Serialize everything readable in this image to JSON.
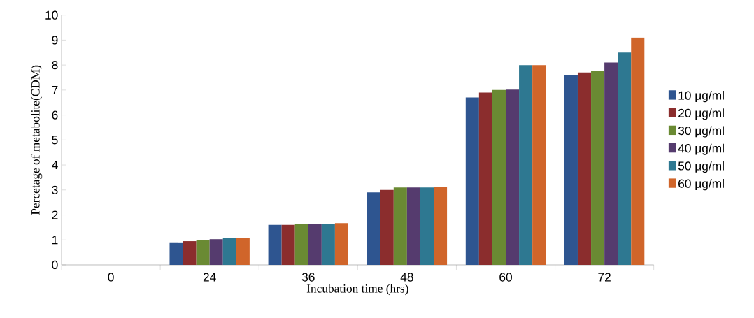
{
  "chart_data": {
    "type": "bar",
    "xlabel": "Incubation time (hrs)",
    "ylabel": "Percetage of metabolite(CDM)",
    "categories": [
      "0",
      "24",
      "36",
      "48",
      "60",
      "72"
    ],
    "series": [
      {
        "name": "10 μg/ml",
        "color": "#2e5590",
        "values": [
          0,
          0.9,
          1.6,
          2.9,
          6.7,
          7.6
        ]
      },
      {
        "name": "20 μg/ml",
        "color": "#8b2d2d",
        "values": [
          0,
          0.95,
          1.6,
          3.0,
          6.9,
          7.7
        ]
      },
      {
        "name": "30 μg/ml",
        "color": "#6a8a33",
        "values": [
          0,
          1.0,
          1.63,
          3.1,
          7.0,
          7.77
        ]
      },
      {
        "name": "40 μg/ml",
        "color": "#553b6e",
        "values": [
          0,
          1.03,
          1.63,
          3.1,
          7.02,
          8.1
        ]
      },
      {
        "name": "50 μg/ml",
        "color": "#2e7891",
        "values": [
          0,
          1.07,
          1.63,
          3.1,
          8.0,
          8.5
        ]
      },
      {
        "name": "60 μg/ml",
        "color": "#d0652a",
        "values": [
          0,
          1.07,
          1.67,
          3.13,
          8.0,
          9.1
        ]
      }
    ],
    "ylim": [
      0,
      10
    ],
    "yticks": [
      0,
      1,
      2,
      3,
      4,
      5,
      6,
      7,
      8,
      9,
      10
    ],
    "grid": false,
    "legend": "right"
  }
}
